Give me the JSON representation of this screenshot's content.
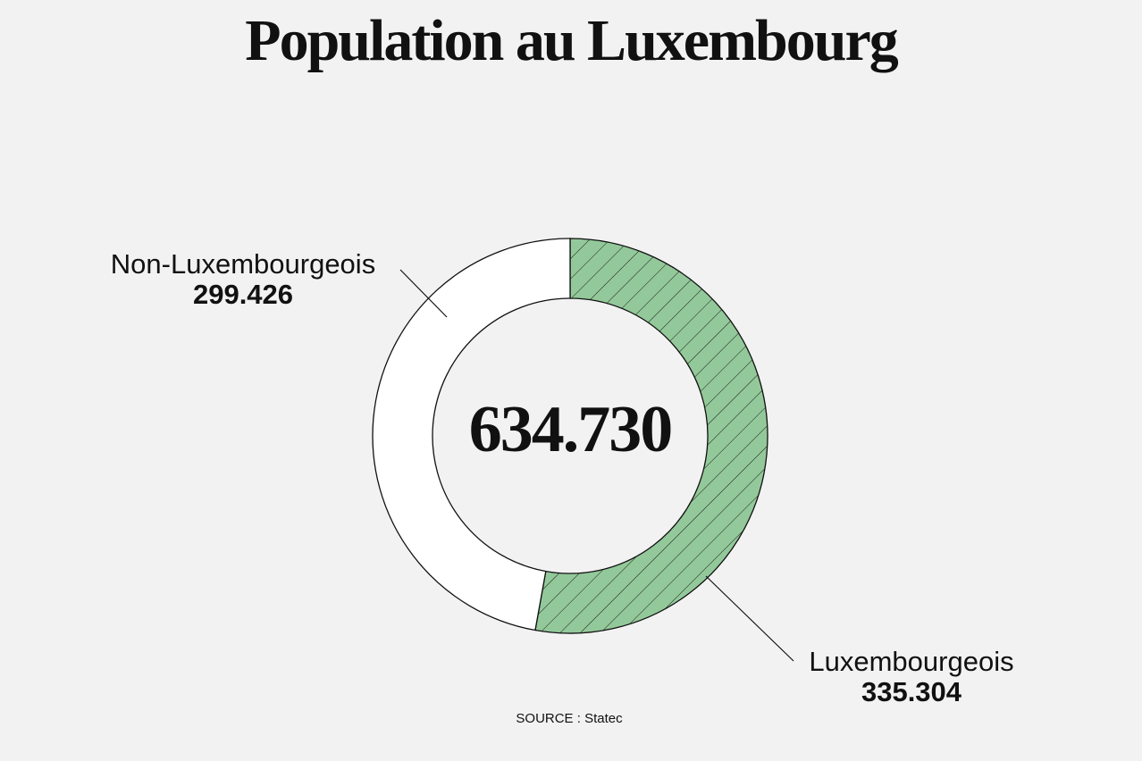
{
  "chart_data": {
    "type": "donut",
    "title": "Population au Luxembourg",
    "categories": [
      "Luxembourgeois",
      "Non-Luxembourgeois"
    ],
    "values": [
      335304,
      299426
    ],
    "value_labels": [
      "335.304",
      "299.426"
    ],
    "colors": [
      "#93c99a",
      "#ffffff"
    ],
    "center_label": "634.730",
    "source": "SOURCE : Statec"
  }
}
